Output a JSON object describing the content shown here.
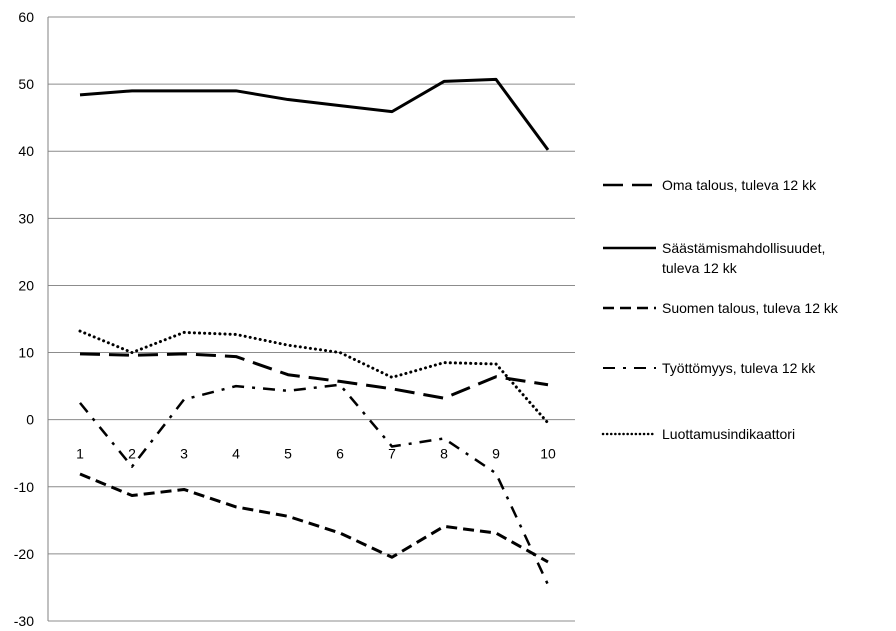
{
  "chart_data": {
    "type": "line",
    "title": "",
    "xlabel": "",
    "ylabel": "",
    "categories": [
      "1",
      "2",
      "3",
      "4",
      "5",
      "6",
      "7",
      "8",
      "9",
      "10"
    ],
    "ylim": [
      -30,
      60
    ],
    "yticks": [
      "-30",
      "-20",
      "-10",
      "0",
      "10",
      "20",
      "30",
      "40",
      "50",
      "60"
    ],
    "grid": true,
    "legend_position": "right",
    "series": [
      {
        "name": "Oma talous, tuleva 12 kk",
        "style": "long-dash",
        "color": "#000000",
        "values": [
          9.8,
          9.6,
          9.8,
          9.4,
          6.7,
          5.7,
          4.6,
          3.2,
          6.4,
          5.2
        ]
      },
      {
        "name": "Säästämismahdollisuudet,",
        "name_line2": "tuleva 12 kk",
        "style": "solid",
        "color": "#000000",
        "values": [
          48.4,
          49.0,
          49.0,
          49.0,
          47.7,
          46.8,
          45.9,
          50.4,
          50.7,
          40.2
        ]
      },
      {
        "name": "Suomen talous, tuleva 12 kk",
        "style": "short-dash",
        "color": "#000000",
        "values": [
          -8.1,
          -11.3,
          -10.4,
          -13.0,
          -14.4,
          -16.9,
          -20.5,
          -15.9,
          -16.9,
          -21.2
        ]
      },
      {
        "name": "Työttömyys, tuleva 12 kk",
        "style": "dash-dot",
        "color": "#000000",
        "values": [
          2.5,
          -7.0,
          3.0,
          5.0,
          4.3,
          5.2,
          -4.0,
          -2.8,
          -8.0,
          -24.6
        ]
      },
      {
        "name": "Luottamusindikaattori",
        "style": "dotted",
        "color": "#000000",
        "values": [
          13.2,
          10.0,
          13.0,
          12.7,
          11.1,
          10.0,
          6.3,
          8.5,
          8.3,
          -0.5
        ]
      }
    ]
  }
}
